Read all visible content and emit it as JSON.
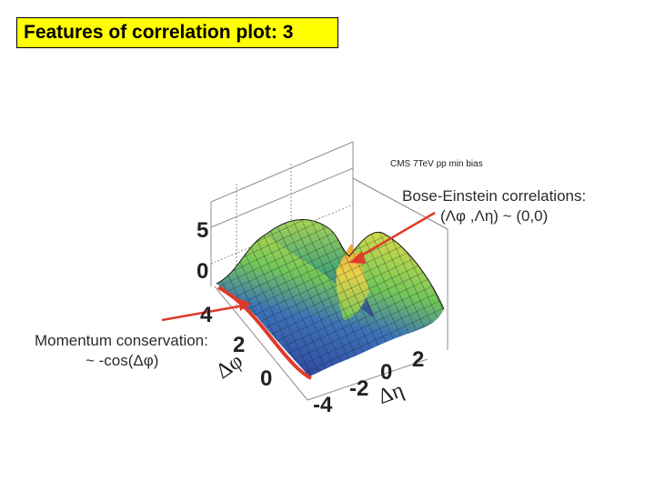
{
  "slide": {
    "title": "Features of correlation plot: 3"
  },
  "plot": {
    "header": "CMS 7TeV pp min bias",
    "z_ticks": [
      "5",
      "0"
    ],
    "dphi_ticks": [
      "4",
      "2",
      "0"
    ],
    "deta_ticks": [
      "-4",
      "-2",
      "0",
      "2"
    ],
    "dphi_label": "Δφ",
    "deta_label": "Δη",
    "colors": {
      "surface_high": "#f2a03a",
      "surface_mid": "#6fc65b",
      "surface_low": "#2b3f9b",
      "arrow": "#e03a2a",
      "mesh": "#1a1a1a"
    }
  },
  "annotations": {
    "bose_einstein": {
      "line1": "Bose-Einstein correlations:",
      "line2": "(Λφ ,Λη) ~ (0,0)"
    },
    "momentum": {
      "line1": "Momentum conservation:",
      "line2": "~ -cos(Δφ)"
    }
  }
}
